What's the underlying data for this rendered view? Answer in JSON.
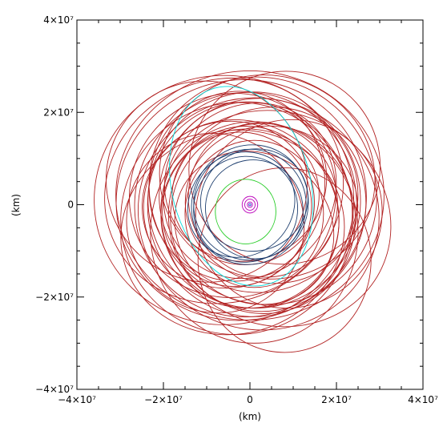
{
  "chart_data": {
    "type": "line",
    "title": "",
    "xlabel": "(km)",
    "ylabel": "(km)",
    "xlim": [
      -40000000,
      40000000
    ],
    "ylim": [
      -40000000,
      40000000
    ],
    "grid": false,
    "legend": "none",
    "xticks": [
      {
        "value": -40000000,
        "label": "−4×10⁷"
      },
      {
        "value": -20000000,
        "label": "−2×10⁷"
      },
      {
        "value": 0,
        "label": "0"
      },
      {
        "value": 20000000,
        "label": "2×10⁷"
      },
      {
        "value": 40000000,
        "label": "4×10⁷"
      }
    ],
    "yticks": [
      {
        "value": -40000000,
        "label": "−4×10⁷"
      },
      {
        "value": -20000000,
        "label": "−2×10⁷"
      },
      {
        "value": 0,
        "label": "0"
      },
      {
        "value": 20000000,
        "label": "2×10⁷"
      },
      {
        "value": 40000000,
        "label": "4×10⁷"
      }
    ],
    "series": [
      {
        "color": "#b22222",
        "orbits": [
          {
            "cx": 0,
            "cy": 2000000,
            "rx": 31000000,
            "ry": 27000000,
            "rot": 0
          },
          {
            "cx": -2000000,
            "cy": 1000000,
            "rx": 29000000,
            "ry": 26000000,
            "rot": 15
          },
          {
            "cx": 2000000,
            "cy": -2000000,
            "rx": 28000000,
            "ry": 25000000,
            "rot": -20
          },
          {
            "cx": -3000000,
            "cy": -3000000,
            "rx": 27000000,
            "ry": 25000000,
            "rot": 40
          },
          {
            "cx": 3000000,
            "cy": 3000000,
            "rx": 27000000,
            "ry": 24000000,
            "rot": -45
          },
          {
            "cx": -1000000,
            "cy": 0,
            "rx": 26000000,
            "ry": 24000000,
            "rot": 70
          },
          {
            "cx": 1000000,
            "cy": 1000000,
            "rx": 25000000,
            "ry": 23000000,
            "rot": 100
          },
          {
            "cx": 0,
            "cy": -1000000,
            "rx": 25000000,
            "ry": 22000000,
            "rot": -70
          },
          {
            "cx": -4000000,
            "cy": 2000000,
            "rx": 24000000,
            "ry": 22000000,
            "rot": 30
          },
          {
            "cx": 4000000,
            "cy": -1000000,
            "rx": 24000000,
            "ry": 21000000,
            "rot": 60
          },
          {
            "cx": -2000000,
            "cy": -2000000,
            "rx": 23000000,
            "ry": 20000000,
            "rot": -30
          },
          {
            "cx": 2000000,
            "cy": 2000000,
            "rx": 23000000,
            "ry": 21000000,
            "rot": 10
          },
          {
            "cx": -3000000,
            "cy": 4000000,
            "rx": 22000000,
            "ry": 19000000,
            "rot": 80
          },
          {
            "cx": 3000000,
            "cy": -3000000,
            "rx": 22000000,
            "ry": 20000000,
            "rot": -80
          },
          {
            "cx": 0,
            "cy": 3000000,
            "rx": 21000000,
            "ry": 18000000,
            "rot": 50
          },
          {
            "cx": 0,
            "cy": -3000000,
            "rx": 21000000,
            "ry": 19000000,
            "rot": -50
          },
          {
            "cx": -5000000,
            "cy": 0,
            "rx": 20000000,
            "ry": 18000000,
            "rot": 20
          },
          {
            "cx": 5000000,
            "cy": 0,
            "rx": 20000000,
            "ry": 17000000,
            "rot": -10
          },
          {
            "cx": -1000000,
            "cy": 5000000,
            "rx": 19000000,
            "ry": 17000000,
            "rot": 35
          },
          {
            "cx": 1000000,
            "cy": -5000000,
            "rx": 19000000,
            "ry": 16000000,
            "rot": -35
          },
          {
            "cx": -3000000,
            "cy": -1000000,
            "rx": 18000000,
            "ry": 16000000,
            "rot": 65
          },
          {
            "cx": 3000000,
            "cy": 1000000,
            "rx": 18000000,
            "ry": 16000000,
            "rot": -65
          },
          {
            "cx": -1000000,
            "cy": 2000000,
            "rx": 17000000,
            "ry": 15000000,
            "rot": 5
          },
          {
            "cx": 1000000,
            "cy": -2000000,
            "rx": 17000000,
            "ry": 15000000,
            "rot": 90
          },
          {
            "cx": -6000000,
            "cy": 3000000,
            "rx": 28000000,
            "ry": 24000000,
            "rot": 25
          },
          {
            "cx": 6000000,
            "cy": -3000000,
            "rx": 27000000,
            "ry": 23000000,
            "rot": -25
          },
          {
            "cx": -6000000,
            "cy": 1000000,
            "rx": 30000000,
            "ry": 27000000,
            "rot": 0
          },
          {
            "cx": 8000000,
            "cy": -12000000,
            "rx": 20000000,
            "ry": 20000000,
            "rot": 0
          },
          {
            "cx": -10000000,
            "cy": 5000000,
            "rx": 23000000,
            "ry": 22000000,
            "rot": 45
          },
          {
            "cx": 8000000,
            "cy": 8000000,
            "rx": 22000000,
            "ry": 21000000,
            "rot": -30
          },
          {
            "cx": 1000000,
            "cy": -6000000,
            "rx": 24000000,
            "ry": 24000000,
            "rot": 0
          },
          {
            "cx": -4000000,
            "cy": -6000000,
            "rx": 26000000,
            "ry": 22000000,
            "rot": 15
          },
          {
            "cx": 4000000,
            "cy": 6000000,
            "rx": 25000000,
            "ry": 22000000,
            "rot": -15
          },
          {
            "cx": 9000000,
            "cy": -2000000,
            "rx": 22000000,
            "ry": 20000000,
            "rot": 55
          },
          {
            "cx": -8000000,
            "cy": -4000000,
            "rx": 21000000,
            "ry": 19000000,
            "rot": -55
          }
        ]
      },
      {
        "color": "#00dddd",
        "orbits": [
          {
            "cx": -2000000,
            "cy": 4000000,
            "rx": 16000000,
            "ry": 22000000,
            "rot": 15
          }
        ]
      },
      {
        "color": "#1f3f6f",
        "orbits": [
          {
            "cx": 0,
            "cy": 0,
            "rx": 13000000,
            "ry": 12000000,
            "rot": 0
          },
          {
            "cx": 1000000,
            "cy": 1000000,
            "rx": 12500000,
            "ry": 11000000,
            "rot": 20
          },
          {
            "cx": -1000000,
            "cy": -1000000,
            "rx": 12000000,
            "ry": 11500000,
            "rot": -20
          },
          {
            "cx": 0,
            "cy": 0,
            "rx": 14000000,
            "ry": 12500000,
            "rot": 60
          },
          {
            "cx": 1000000,
            "cy": -1000000,
            "rx": 11500000,
            "ry": 10500000,
            "rot": -60
          },
          {
            "cx": -2000000,
            "cy": 0,
            "rx": 12800000,
            "ry": 11000000,
            "rot": 40
          }
        ]
      },
      {
        "color": "#22cc22",
        "orbits": [
          {
            "cx": -1000000,
            "cy": -1500000,
            "rx": 7000000,
            "ry": 7000000,
            "rot": 0
          }
        ]
      },
      {
        "color": "#bb00bb",
        "orbits": [
          {
            "cx": 0,
            "cy": 0,
            "rx": 1800000,
            "ry": 1800000,
            "rot": 0
          },
          {
            "cx": 0,
            "cy": 0,
            "rx": 1200000,
            "ry": 1200000,
            "rot": 0
          },
          {
            "cx": 0,
            "cy": 0,
            "rx": 600000,
            "ry": 600000,
            "rot": 0
          }
        ]
      },
      {
        "color": "#3333cc",
        "orbits": [
          {
            "cx": 0,
            "cy": 0,
            "rx": 250000,
            "ry": 250000,
            "rot": 0
          }
        ]
      }
    ]
  }
}
